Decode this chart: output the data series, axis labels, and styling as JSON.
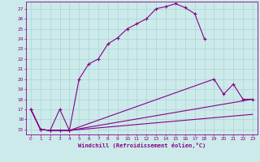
{
  "xlabel": "Windchill (Refroidissement éolien,°C)",
  "background_color": "#cceaea",
  "grid_color": "#aad4d4",
  "line_color": "#880088",
  "spine_color": "#880088",
  "xlim": [
    -0.5,
    23.5
  ],
  "ylim": [
    14.5,
    27.7
  ],
  "xticks": [
    0,
    1,
    2,
    3,
    4,
    5,
    6,
    7,
    8,
    9,
    10,
    11,
    12,
    13,
    14,
    15,
    16,
    17,
    18,
    19,
    20,
    21,
    22,
    23
  ],
  "yticks": [
    15,
    16,
    17,
    18,
    19,
    20,
    21,
    22,
    23,
    24,
    25,
    26,
    27
  ],
  "line1_x": [
    0,
    1,
    2,
    3,
    4,
    5,
    6,
    7,
    8,
    9,
    10,
    11,
    12,
    13,
    14,
    15,
    16,
    17,
    18
  ],
  "line1_y": [
    17,
    15,
    14.9,
    17,
    14.9,
    20,
    21.5,
    22,
    23.5,
    24.1,
    25,
    25.5,
    26,
    27,
    27.2,
    27.5,
    27.1,
    26.5,
    24
  ],
  "line2_x": [
    0,
    1,
    2,
    3,
    4,
    19,
    20,
    21,
    22,
    23
  ],
  "line2_y": [
    17,
    15,
    14.9,
    14.9,
    14.9,
    20,
    18.5,
    19.5,
    18,
    18
  ],
  "line3_x": [
    0,
    1,
    2,
    3,
    4,
    23
  ],
  "line3_y": [
    17,
    15,
    14.9,
    14.9,
    14.9,
    18
  ],
  "line4_x": [
    0,
    1,
    2,
    3,
    4,
    23
  ],
  "line4_y": [
    17,
    15,
    14.9,
    14.9,
    14.9,
    16.5
  ]
}
